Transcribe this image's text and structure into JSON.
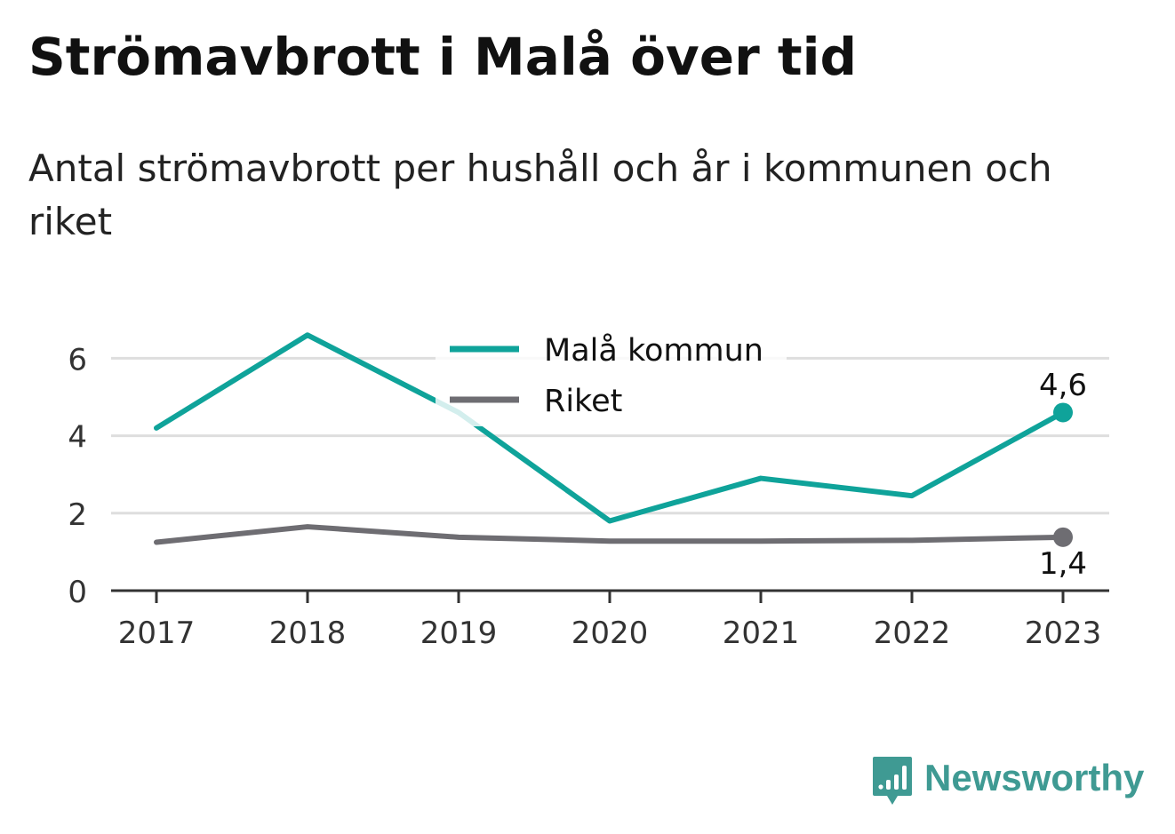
{
  "header": {
    "title": "Strömavbrott i Malå över tid",
    "subtitle": "Antal strömavbrott per hushåll och år i kommunen och riket"
  },
  "brand": {
    "name": "Newsworthy",
    "icon": "newsworthy-logo-icon",
    "color": "#3f9a93"
  },
  "chart_data": {
    "type": "line",
    "title": "Strömavbrott i Malå över tid",
    "subtitle": "Antal strömavbrott per hushåll och år i kommunen och riket",
    "xlabel": "",
    "ylabel": "",
    "x": [
      "2017",
      "2018",
      "2019",
      "2020",
      "2021",
      "2022",
      "2023"
    ],
    "yticks": [
      "0",
      "2",
      "4",
      "6"
    ],
    "ylim": [
      0,
      7
    ],
    "grid": true,
    "legend": "top-center",
    "series": [
      {
        "name": "Malå kommun",
        "color": "#0fa39a",
        "values": [
          4.2,
          6.6,
          4.6,
          1.8,
          2.9,
          2.45,
          4.6
        ],
        "end_label": "4,6"
      },
      {
        "name": "Riket",
        "color": "#6e6d72",
        "values": [
          1.25,
          1.65,
          1.38,
          1.28,
          1.28,
          1.3,
          1.38
        ],
        "end_label": "1,4"
      }
    ]
  }
}
